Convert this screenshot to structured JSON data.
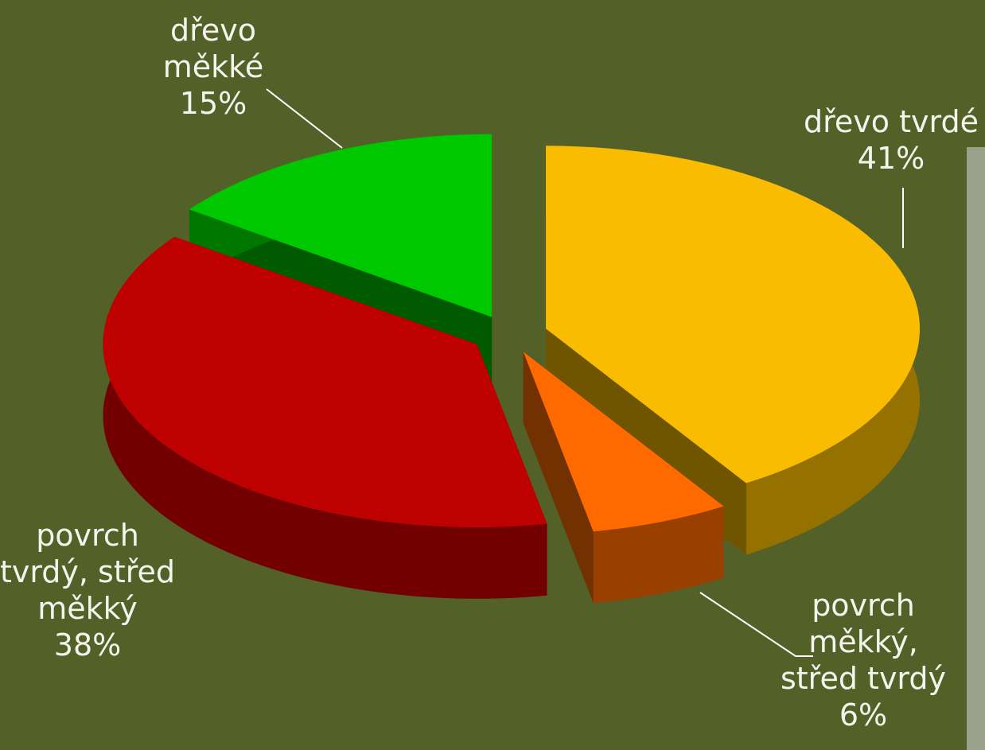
{
  "chart_data": {
    "type": "pie",
    "categories": [
      "dřevo tvrdé",
      "povrch měkký, střed tvrdý",
      "povrch tvrdý, střed měkký",
      "dřevo měkké"
    ],
    "values": [
      41,
      6,
      38,
      15
    ],
    "value_labels": [
      "41%",
      "6%",
      "38%",
      "15%"
    ],
    "colors": [
      "#f9bc00",
      "#ff6a00",
      "#bf0000",
      "#00c800"
    ]
  }
}
